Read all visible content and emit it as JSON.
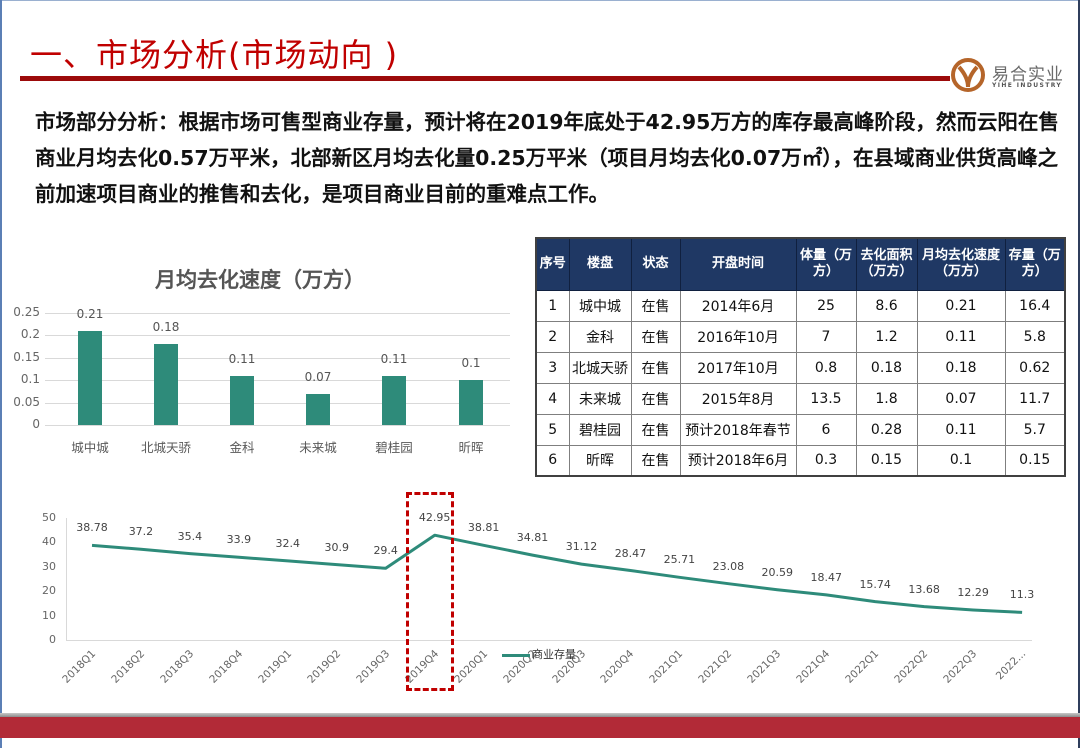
{
  "header": {
    "title": "一、市场分析(市场动向 )",
    "logo": {
      "name_cn": "易合实业",
      "name_en": "YIHE INDUSTRY",
      "colors": {
        "mark": "#b5652a",
        "text": "#6a6a6a"
      }
    }
  },
  "analysis_text": "市场部分分析：根据市场可售型商业存量，预计将在2019年底处于42.95万方的库存最高峰阶段，然而云阳在售商业月均去化0.57万平米，北部新区月均去化量0.25万平米（项目月均去化0.07万㎡），在县域商业供货高峰之前加速项目商业的推售和去化，是项目商业目前的重难点工作。",
  "table": {
    "headers": [
      "序号",
      "楼盘",
      "状态",
      "开盘时间",
      "体量（万方）",
      "去化面积（万方）",
      "月均去化速度（万方）",
      "存量（万方）"
    ],
    "rows": [
      [
        "1",
        "城中城",
        "在售",
        "2014年6月",
        "25",
        "8.6",
        "0.21",
        "16.4"
      ],
      [
        "2",
        "金科",
        "在售",
        "2016年10月",
        "7",
        "1.2",
        "0.11",
        "5.8"
      ],
      [
        "3",
        "北城天骄",
        "在售",
        "2017年10月",
        "0.8",
        "0.18",
        "0.18",
        "0.62"
      ],
      [
        "4",
        "未来城",
        "在售",
        "2015年8月",
        "13.5",
        "1.8",
        "0.07",
        "11.7"
      ],
      [
        "5",
        "碧桂园",
        "在售",
        "预计2018年春节",
        "6",
        "0.28",
        "0.11",
        "5.7"
      ],
      [
        "6",
        "昕晖",
        "在售",
        "预计2018年6月",
        "0.3",
        "0.15",
        "0.1",
        "0.15"
      ]
    ]
  },
  "chart_data": [
    {
      "type": "bar",
      "title": "月均去化速度（万方）",
      "categories": [
        "城中城",
        "北城天骄",
        "金科",
        "未来城",
        "碧桂园",
        "昕晖"
      ],
      "values": [
        0.21,
        0.18,
        0.11,
        0.07,
        0.11,
        0.1
      ],
      "value_labels": [
        "0.21",
        "0.18",
        "0.11",
        "0.07",
        "0.11",
        "0.1"
      ],
      "xlabel": "",
      "ylabel": "",
      "ylim": [
        0,
        0.25
      ],
      "yticks": [
        "0",
        "0.05",
        "0.1",
        "0.15",
        "0.2",
        "0.25"
      ],
      "grid": true,
      "color": "#2e8b7a"
    },
    {
      "type": "line",
      "title": "",
      "categories": [
        "2018Q1",
        "2018Q2",
        "2018Q3",
        "2018Q4",
        "2019Q1",
        "2019Q2",
        "2019Q3",
        "2019Q4",
        "2020Q1",
        "2020Q2",
        "2020Q3",
        "2020Q4",
        "2021Q1",
        "2021Q2",
        "2021Q3",
        "2021Q4",
        "2022Q1",
        "2022Q2",
        "2022Q3",
        "2022..."
      ],
      "series": [
        {
          "name": "商业存量",
          "values": [
            38.78,
            37.2,
            35.4,
            33.9,
            32.4,
            30.9,
            29.4,
            42.95,
            38.81,
            34.81,
            31.12,
            28.47,
            25.71,
            23.08,
            20.59,
            18.47,
            15.74,
            13.68,
            12.29,
            11.3
          ],
          "value_labels": [
            "38.78",
            "37.2",
            "35.4",
            "33.9",
            "32.4",
            "30.9",
            "29.4",
            "42.95",
            "38.81",
            "34.81",
            "31.12",
            "28.47",
            "25.71",
            "23.08",
            "20.59",
            "18.47",
            "15.74",
            "13.68",
            "12.29",
            "11.3"
          ],
          "color": "#2e8b7a"
        }
      ],
      "ylim": [
        0,
        50
      ],
      "yticks": [
        "0",
        "10",
        "20",
        "30",
        "40",
        "50"
      ],
      "grid": false,
      "legend_position": "bottom",
      "annotation": {
        "type": "dashed-box",
        "target": "2019Q4",
        "color": "#c00000"
      }
    }
  ]
}
